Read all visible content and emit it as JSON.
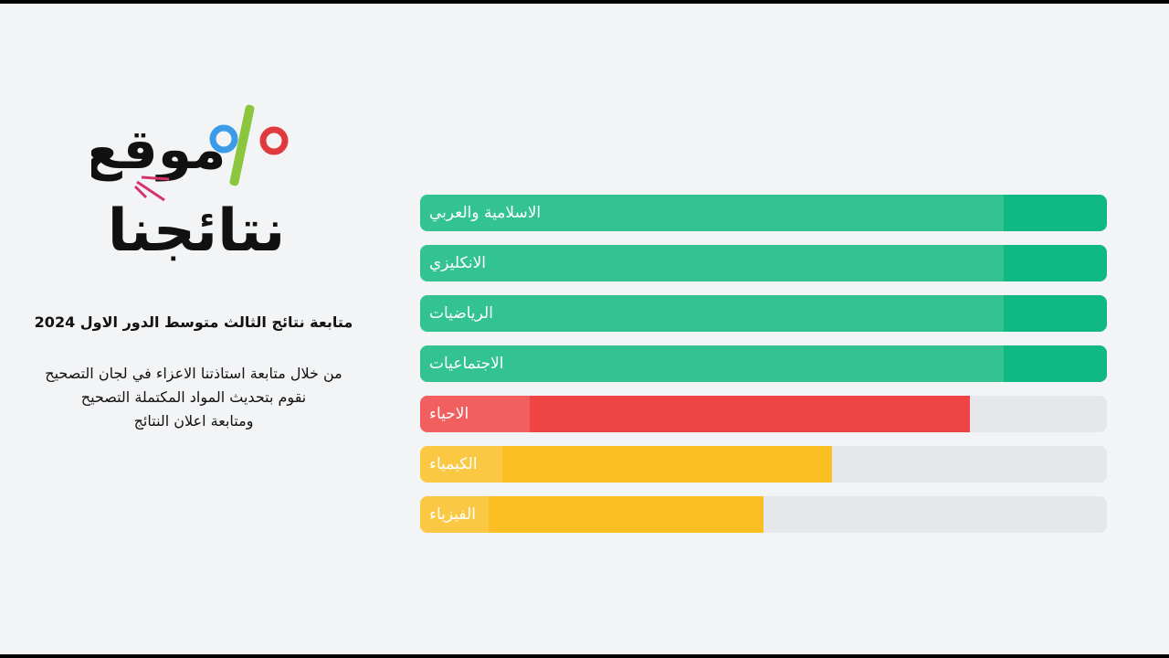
{
  "logo": {
    "line1": "موقع",
    "line2": "نتائجنا"
  },
  "intro": {
    "title": "متابعة نتائج الثالث متوسط الدور الاول 2024",
    "lines": [
      "من خلال متابعة استاذتنا الاعزاء في لجان التصحيح",
      "نقوم بتحديث المواد المكتملة التصحيح",
      "ومتابعة اعلان النتائج"
    ]
  },
  "progress": {
    "range": [
      0,
      100
    ],
    "track_color": "#e5e7eb",
    "items": [
      {
        "label": "الاسلامية والعربي",
        "value": 100,
        "color": "#10b981"
      },
      {
        "label": "الانكليزي",
        "value": 100,
        "color": "#10b981"
      },
      {
        "label": "الرياضيات",
        "value": 100,
        "color": "#10b981"
      },
      {
        "label": "الاجتماعيات",
        "value": 100,
        "color": "#10b981"
      },
      {
        "label": "الاحياء",
        "value": 80,
        "color": "#ef4444"
      },
      {
        "label": "الكيمياء",
        "value": 60,
        "color": "#fbbf24"
      },
      {
        "label": "الفيزياء",
        "value": 50,
        "color": "#fbbf24"
      }
    ]
  }
}
